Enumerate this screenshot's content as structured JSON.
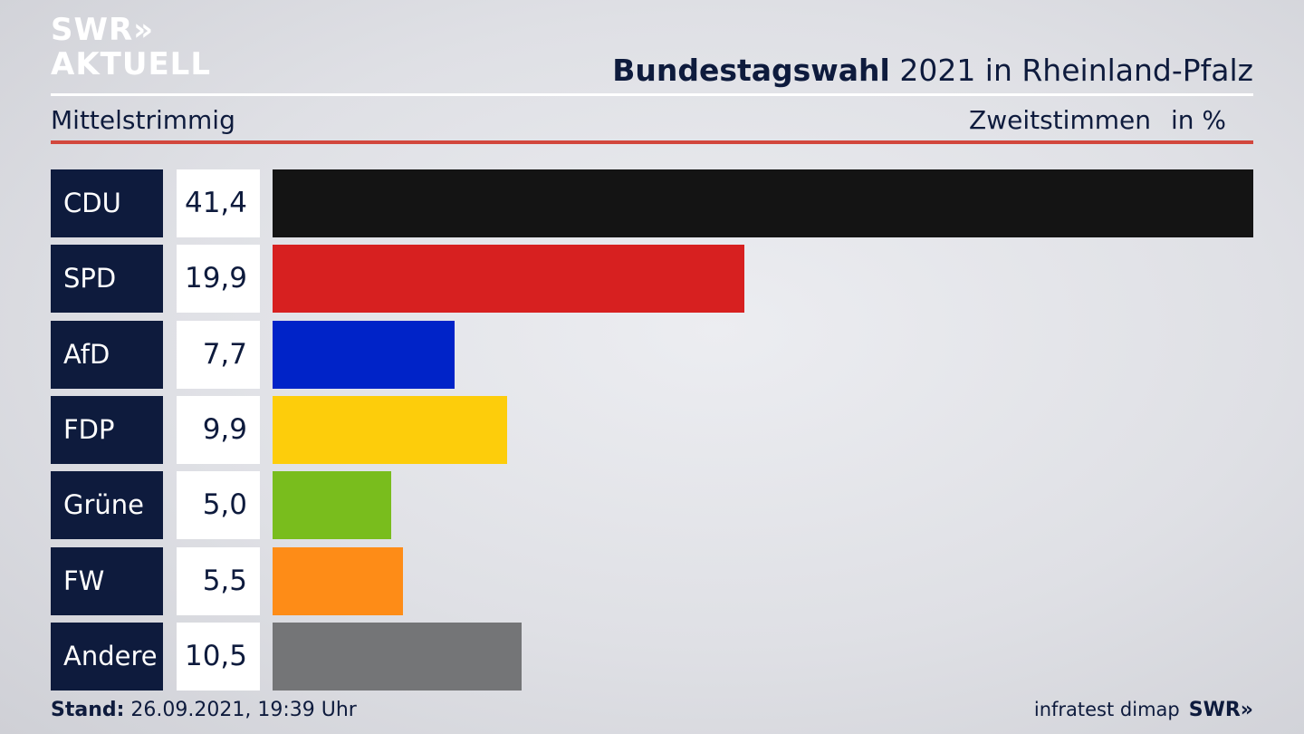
{
  "brand": {
    "line1": "SWR»",
    "line2": "AKTUELL"
  },
  "header": {
    "title_bold": "Bundestagswahl",
    "title_rest": " 2021 in Rheinland-Pfalz",
    "subtitle": "Mittelstrimmig",
    "vote_type": "Zweitstimmen",
    "unit": "in %"
  },
  "chart_data": {
    "type": "bar",
    "orientation": "horizontal",
    "title": "Bundestagswahl 2021 in Rheinland-Pfalz",
    "subtitle": "Mittelstrimmig",
    "categories": [
      "CDU",
      "SPD",
      "AfD",
      "FDP",
      "Grüne",
      "FW",
      "Andere"
    ],
    "values": [
      41.4,
      19.9,
      7.7,
      9.9,
      5.0,
      5.5,
      10.5
    ],
    "labels": [
      "41,4",
      "19,9",
      "7,7",
      "9,9",
      "5,0",
      "5,5",
      "10,5"
    ],
    "colors": [
      "#141414",
      "#d72020",
      "#0023c8",
      "#fdcd0b",
      "#79bd1d",
      "#fe8c17",
      "#747577"
    ],
    "unit": "%",
    "xlim": [
      0,
      41.4
    ]
  },
  "footer": {
    "stand_label": "Stand:",
    "stand_value": "26.09.2021, 19:39 Uhr",
    "source": "infratest dimap",
    "source_brand": "SWR»"
  }
}
